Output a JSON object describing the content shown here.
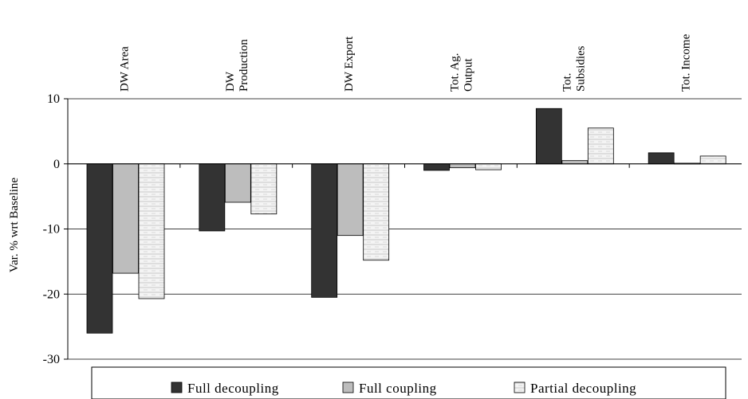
{
  "chart_data": {
    "type": "bar",
    "categories": [
      [
        "DW Area"
      ],
      [
        "DW",
        "Production"
      ],
      [
        "DW Export"
      ],
      [
        "Tot. Ag.",
        "Output"
      ],
      [
        "Tot.",
        "Subsidies"
      ],
      [
        "Tot. Income"
      ]
    ],
    "category_names": [
      "DW Area",
      "DW Production",
      "DW Export",
      "Tot. Ag. Output",
      "Tot. Subsidies",
      "Tot. Income"
    ],
    "series": [
      {
        "name": "Full decoupling",
        "values": [
          -26.0,
          -10.3,
          -20.5,
          -1.0,
          8.5,
          1.7
        ],
        "color": "#333333",
        "pattern": "solid"
      },
      {
        "name": "Full coupling",
        "values": [
          -16.8,
          -5.9,
          -11.0,
          -0.6,
          0.5,
          0.1
        ],
        "color": "#bdbdbd",
        "pattern": "solid"
      },
      {
        "name": "Partial decoupling",
        "values": [
          -20.7,
          -7.7,
          -14.8,
          -0.9,
          5.5,
          1.2
        ],
        "color": "#f2f2f2",
        "pattern": "dashed"
      }
    ],
    "ylabel": "Var. % wrt Baseline",
    "xlabel": "",
    "ylim": [
      -30,
      10
    ],
    "yticks": [
      10,
      0,
      -10,
      -20,
      -30
    ],
    "grid": true,
    "legend_position": "bottom",
    "category_labels_position": "top-rotated"
  }
}
